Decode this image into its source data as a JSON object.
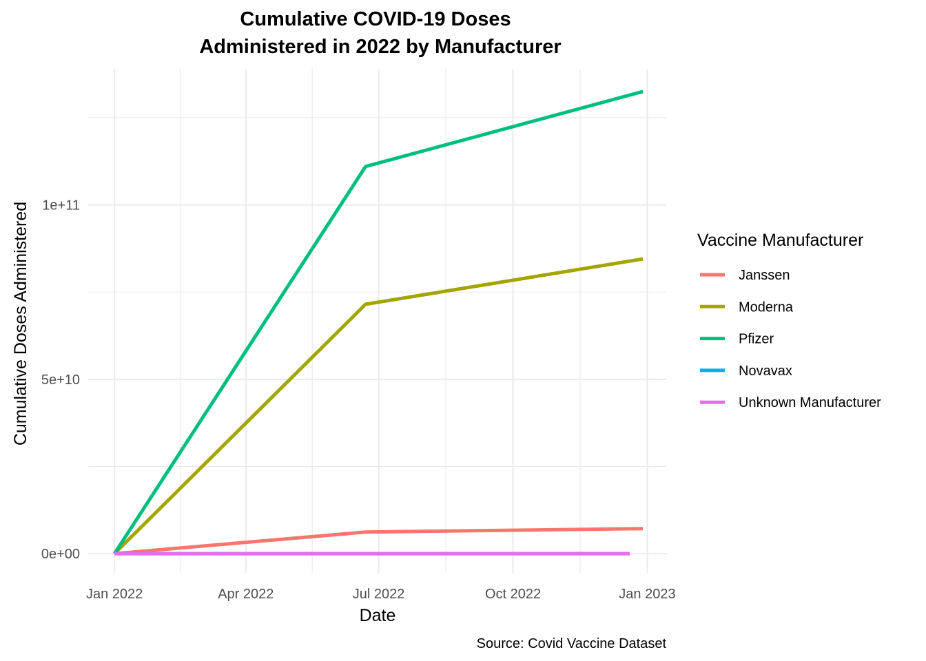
{
  "chart_data": {
    "type": "line",
    "title_lines": [
      "Cumulative COVID-19 Doses",
      "Administered in 2022 by Manufacturer"
    ],
    "xlabel": "Date",
    "ylabel": "Cumulative Doses Administered",
    "caption": "Source: Covid Vaccine Dataset",
    "x_ticks": [
      {
        "date": "2022-01-01",
        "label": "Jan 2022"
      },
      {
        "date": "2022-04-01",
        "label": "Apr 2022"
      },
      {
        "date": "2022-07-01",
        "label": "Jul 2022"
      },
      {
        "date": "2022-10-01",
        "label": "Oct 2022"
      },
      {
        "date": "2023-01-01",
        "label": "Jan 2023"
      }
    ],
    "y_ticks": [
      {
        "value": 0,
        "label": "0e+00"
      },
      {
        "value": 50000000000,
        "label": "5e+10"
      },
      {
        "value": 100000000000,
        "label": "1e+11"
      }
    ],
    "xlim": [
      "2021-12-14",
      "2023-01-14"
    ],
    "ylim": [
      -5500000000,
      139000000000
    ],
    "grid": true,
    "legend": {
      "title": "Vaccine Manufacturer",
      "position": "right"
    },
    "series": [
      {
        "name": "Janssen",
        "color": "#F8766D",
        "points": [
          [
            "2022-01-01",
            0
          ],
          [
            "2022-06-22",
            6200000000
          ],
          [
            "2022-12-29",
            7200000000
          ]
        ]
      },
      {
        "name": "Moderna",
        "color": "#A3A500",
        "points": [
          [
            "2022-01-01",
            0
          ],
          [
            "2022-06-22",
            71500000000
          ],
          [
            "2022-12-29",
            84500000000
          ]
        ]
      },
      {
        "name": "Pfizer",
        "color": "#00BF7D",
        "points": [
          [
            "2022-01-01",
            0
          ],
          [
            "2022-06-22",
            111000000000
          ],
          [
            "2022-12-29",
            132500000000
          ]
        ]
      },
      {
        "name": "Novavax",
        "color": "#00B0F6",
        "points": [
          [
            "2022-01-01",
            0
          ],
          [
            "2022-12-20",
            0
          ]
        ]
      },
      {
        "name": "Unknown Manufacturer",
        "color": "#E76BF3",
        "points": [
          [
            "2022-01-01",
            0
          ],
          [
            "2022-12-20",
            0
          ]
        ]
      }
    ]
  }
}
